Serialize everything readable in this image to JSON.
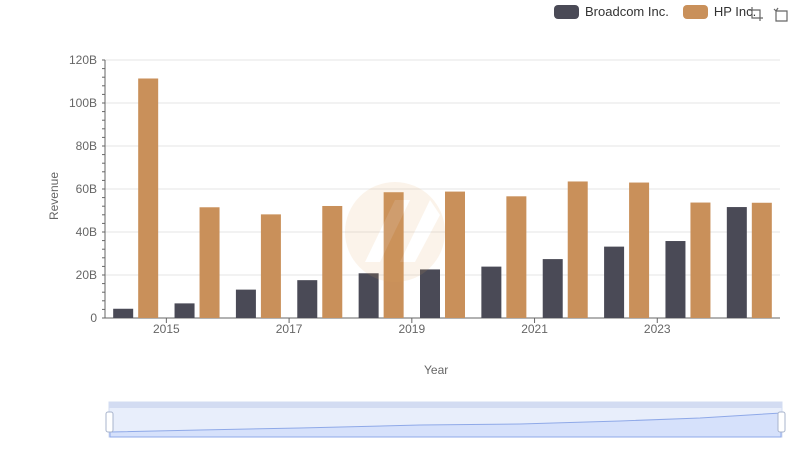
{
  "toolbar": {
    "zoom_icon": "zoom-select-icon",
    "reset_icon": "zoom-reset-icon"
  },
  "chart_data": {
    "type": "bar",
    "x": [
      2014,
      2015,
      2016,
      2017,
      2018,
      2019,
      2020,
      2021,
      2022,
      2023,
      2024
    ],
    "x_tick_labels": [
      "2015",
      "2017",
      "2019",
      "2021",
      "2023"
    ],
    "xlabel": "Year",
    "ylabel": "Revenue",
    "ylim": [
      0,
      120000000000
    ],
    "y_tick_labels": [
      "0",
      "20B",
      "40B",
      "60B",
      "80B",
      "100B",
      "120B"
    ],
    "grid": true,
    "legend_position": "top-right",
    "series": [
      {
        "name": "Broadcom Inc.",
        "color": "#4a4a56",
        "values": [
          4300000000,
          6800000000,
          13200000000,
          17600000000,
          20800000000,
          22600000000,
          23900000000,
          27400000000,
          33200000000,
          35800000000,
          51600000000
        ]
      },
      {
        "name": "HP Inc.",
        "color": "#c9905a",
        "values": [
          111400000000,
          51500000000,
          48200000000,
          52100000000,
          58500000000,
          58800000000,
          56600000000,
          63500000000,
          63000000000,
          53700000000,
          53600000000
        ]
      }
    ]
  }
}
